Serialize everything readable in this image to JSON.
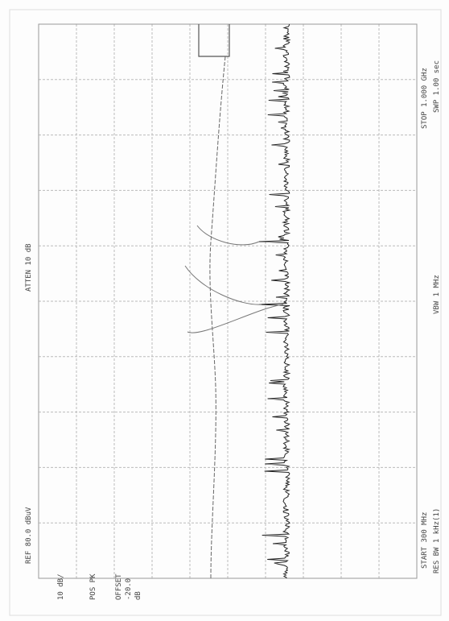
{
  "header": {
    "ref": "REF 80.0 dBuV",
    "atten": "ATTEN 10 dB"
  },
  "settings": {
    "scale": "10 dB/",
    "detector": "POS PK",
    "offset_label": "OFFSET",
    "offset_value": "-20.0",
    "offset_unit": "dB"
  },
  "footer": {
    "start": "START 300 MHz",
    "stop": "STOP 1.000 GHz",
    "res_bw": "RES BW 1 kHz(1)",
    "vbw": "VBW 1 MHz",
    "sweep": "SWP 1.00 sec"
  }
}
